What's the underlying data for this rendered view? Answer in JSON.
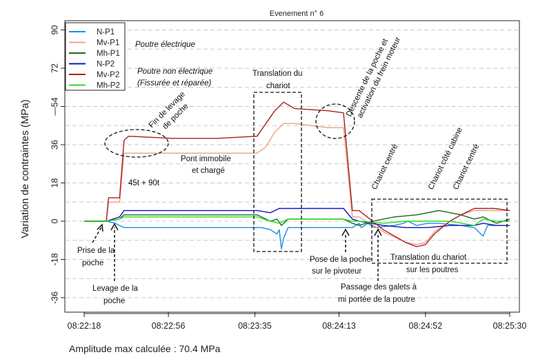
{
  "chart_data": {
    "type": "line",
    "title": "Evenement n° 6",
    "ylabel": "Variation de contraintes (MPa)",
    "xlabel": "",
    "ylim": [
      -45,
      95
    ],
    "yticks": [
      90,
      72,
      "—54",
      36,
      18,
      0,
      -18,
      -36
    ],
    "ytick_values": [
      90,
      72,
      54,
      36,
      18,
      0,
      -18,
      -36
    ],
    "xlim": [
      0,
      192
    ],
    "xticks": [
      "08:22:18",
      "08:22:56",
      "08:23:35",
      "08:24:13",
      "08:24:52",
      "08:25:30"
    ],
    "xtick_values": [
      0,
      38,
      77,
      115,
      154,
      192
    ],
    "grid": true,
    "legend_position": "top-left",
    "series": [
      {
        "name": "N-P1",
        "color": "#1e8ce0",
        "x": [
          0,
          10,
          14,
          16,
          18,
          40,
          60,
          74,
          80,
          84,
          87,
          88,
          89,
          90,
          92,
          94,
          110,
          117,
          121,
          124,
          125,
          128,
          131,
          140,
          144,
          146,
          150,
          155,
          160,
          170,
          176,
          180,
          182,
          192
        ],
        "y": [
          0,
          0,
          -1,
          -2,
          -3,
          -3,
          -3,
          -3,
          -3,
          -4,
          -6,
          -4,
          -13,
          -8,
          -3,
          -3,
          -3,
          -3,
          -3,
          -1,
          -3,
          -1,
          -3,
          -2,
          -1,
          0,
          -2,
          -1,
          -1,
          -2,
          -3,
          -7,
          -2,
          -2
        ]
      },
      {
        "name": "Mv-P1",
        "color": "#f0a080",
        "x": [
          0,
          10,
          11,
          16,
          18,
          40,
          60,
          78,
          82,
          86,
          90,
          95,
          110,
          117,
          121,
          124,
          135,
          145,
          150,
          154,
          158,
          165,
          170,
          176,
          180,
          185,
          192
        ],
        "y": [
          0,
          0,
          9,
          9,
          32,
          32,
          32,
          32,
          35,
          42,
          46,
          46,
          44,
          44,
          2,
          2,
          -5,
          -10,
          -11,
          -10,
          -5,
          0,
          3,
          5,
          5,
          5,
          5
        ]
      },
      {
        "name": "Mh-P1",
        "color": "#1a6a1a",
        "x": [
          0,
          10,
          16,
          18,
          40,
          60,
          78,
          84,
          87,
          89,
          92,
          95,
          110,
          117,
          121,
          124,
          130,
          140,
          150,
          160,
          165,
          170,
          176,
          180,
          186,
          192
        ],
        "y": [
          0,
          0,
          1,
          3,
          3,
          3,
          3,
          0,
          1,
          -2,
          1,
          1,
          1,
          1,
          -1,
          -2,
          0,
          2,
          3,
          5,
          4,
          3,
          1,
          2,
          -1,
          1
        ]
      },
      {
        "name": "N-P2",
        "color": "#1010c8",
        "x": [
          0,
          10,
          16,
          18,
          40,
          60,
          78,
          84,
          88,
          92,
          95,
          110,
          117,
          121,
          124,
          135,
          145,
          150,
          155,
          165,
          170,
          176,
          180,
          186,
          192
        ],
        "y": [
          0,
          0,
          2,
          5,
          5,
          5,
          5,
          4,
          6,
          6,
          6,
          6,
          6,
          1,
          0,
          -2,
          -3,
          -3,
          -3,
          -2,
          -2,
          -2,
          -1,
          -2,
          -2
        ]
      },
      {
        "name": "Mv-P2",
        "color": "#a82020",
        "x": [
          0,
          10,
          11,
          16,
          18,
          20,
          40,
          60,
          78,
          82,
          86,
          90,
          95,
          110,
          117,
          121,
          124,
          135,
          145,
          150,
          154,
          158,
          165,
          170,
          176,
          180,
          185,
          192
        ],
        "y": [
          0,
          0,
          11,
          11,
          38,
          40,
          39,
          39,
          40,
          46,
          52,
          56,
          53,
          52,
          51,
          5,
          5,
          -4,
          -10,
          -12,
          -11,
          -6,
          0,
          3,
          6,
          6,
          6,
          5
        ]
      },
      {
        "name": "Mh-P2",
        "color": "#22dd22",
        "x": [
          0,
          10,
          16,
          18,
          40,
          60,
          78,
          84,
          88,
          92,
          95,
          110,
          117,
          121,
          124,
          135,
          145,
          155,
          165,
          176,
          180,
          186,
          192
        ],
        "y": [
          0,
          0,
          1,
          2,
          2,
          2,
          2,
          0,
          -1,
          1,
          1,
          1,
          1,
          0,
          0,
          -1,
          0,
          0,
          0,
          -2,
          1,
          0,
          0
        ]
      }
    ],
    "annotations": {
      "poutre_elec": "Poutre électrique",
      "poutre_non_elec": "Poutre non électrique",
      "fissuree": "(Fissurée et réparée)",
      "fin_levage_1": "Fin de levage",
      "fin_levage_2": "de poche",
      "pont_1": "Pont immobile",
      "pont_2": "et chargé",
      "charge": "45t + 90t",
      "trans_1": "Translation du",
      "trans_2": "chariot",
      "desc_1": "Descente de la poche et",
      "desc_2": "activation du frein moteur",
      "chariot_centre_1": "Chariot centré",
      "chariot_cabine": "Chariot côté cabine",
      "chariot_centre_2": "Chariot centré",
      "prise_1": "Prise de la",
      "prise_2": "poche",
      "levage_1": "Levage de la",
      "levage_2": "poche",
      "pose_1": "Pose de la poche",
      "pose_2": "sur le pivoteur",
      "trans_poutres_1": "Translation du chariot",
      "trans_poutres_2": "sur les poutres",
      "galets_1": "Passage des galets à",
      "galets_2": "mi portée de la poutre"
    }
  },
  "footer": "Amplitude max calculée : 70.4 MPa"
}
